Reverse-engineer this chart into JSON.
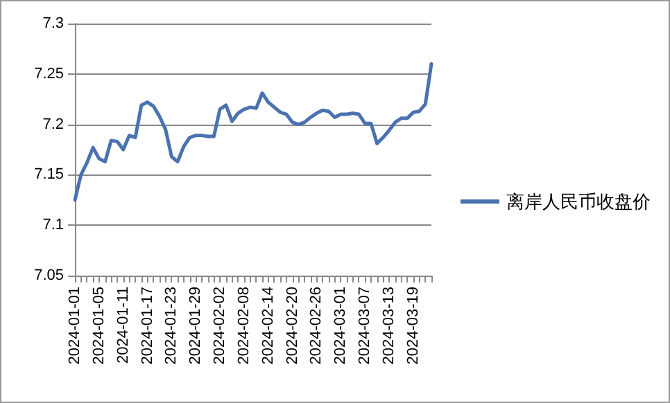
{
  "chart_data": {
    "type": "line",
    "categories": [
      "2024-01-01",
      null,
      null,
      null,
      "2024-01-05",
      null,
      null,
      null,
      "2024-01-11",
      null,
      null,
      null,
      "2024-01-17",
      null,
      null,
      null,
      "2024-01-23",
      null,
      null,
      null,
      "2024-01-29",
      null,
      null,
      null,
      "2024-02-02",
      null,
      null,
      null,
      "2024-02-08",
      null,
      null,
      null,
      "2024-02-14",
      null,
      null,
      null,
      "2024-02-20",
      null,
      null,
      null,
      "2024-02-26",
      null,
      null,
      null,
      "2024-03-01",
      null,
      null,
      null,
      "2024-03-07",
      null,
      null,
      null,
      "2024-03-13",
      null,
      null,
      null,
      "2024-03-19",
      null,
      null,
      null
    ],
    "series": [
      {
        "name": "离岸人民币收盘价",
        "color": "#4a72b0",
        "values": [
          7.125,
          7.15,
          7.162,
          7.177,
          7.166,
          7.163,
          7.184,
          7.183,
          7.175,
          7.189,
          7.187,
          7.219,
          7.222,
          7.218,
          7.208,
          7.195,
          7.168,
          7.163,
          7.178,
          7.187,
          7.189,
          7.189,
          7.188,
          7.188,
          7.215,
          7.219,
          7.203,
          7.211,
          7.215,
          7.217,
          7.216,
          7.231,
          7.222,
          7.217,
          7.212,
          7.21,
          7.202,
          7.2,
          7.202,
          7.207,
          7.211,
          7.214,
          7.213,
          7.207,
          7.21,
          7.21,
          7.211,
          7.21,
          7.201,
          7.201,
          7.181,
          7.187,
          7.194,
          7.202,
          7.206,
          7.206,
          7.212,
          7.213,
          7.22,
          7.26
        ]
      }
    ],
    "ylim": [
      7.05,
      7.3
    ],
    "yticks": [
      7.05,
      7.1,
      7.15,
      7.2,
      7.25,
      7.3
    ],
    "grid": "y",
    "legend": "right",
    "marker": "none",
    "line_style": "solid"
  }
}
